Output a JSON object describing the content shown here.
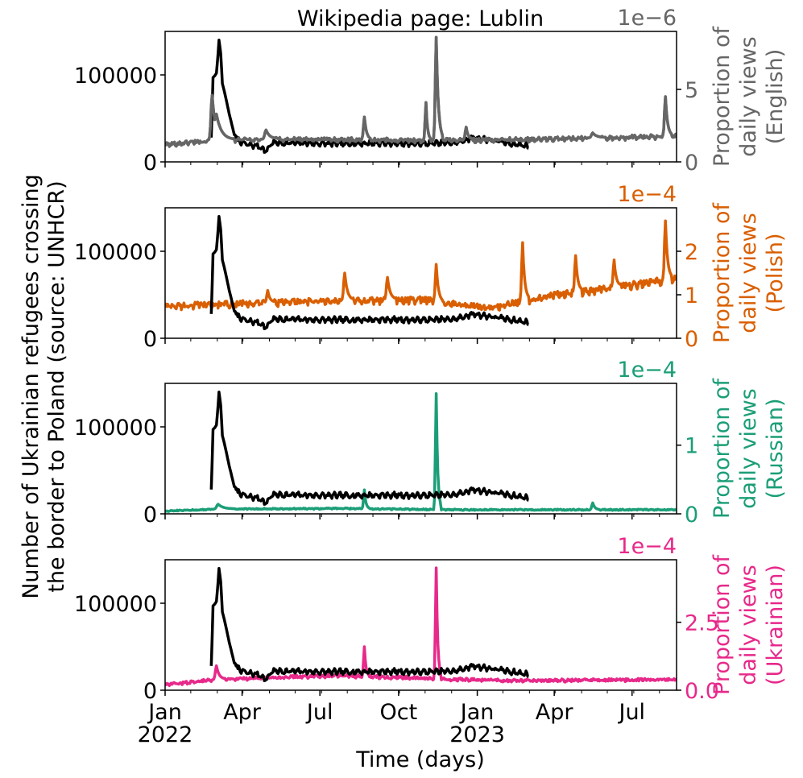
{
  "figure": {
    "title": "Wikipedia page: Lublin",
    "shared_ylabel_line1": "Number of Ukrainian refugees crossing",
    "shared_ylabel_line2": "the border to Poland (source: UNHCR)",
    "xlabel": "Time (days)",
    "x_ticks": [
      {
        "day": 0,
        "label": "Jan",
        "year": "2022"
      },
      {
        "day": 90,
        "label": "Apr",
        "year": ""
      },
      {
        "day": 181,
        "label": "Jul",
        "year": ""
      },
      {
        "day": 273,
        "label": "Oct",
        "year": ""
      },
      {
        "day": 365,
        "label": "Jan",
        "year": "2023"
      },
      {
        "day": 455,
        "label": "Apr",
        "year": ""
      },
      {
        "day": 546,
        "label": "Jul",
        "year": ""
      }
    ],
    "x_range_days": [
      0,
      598
    ],
    "left_ylim": [
      0,
      150000
    ],
    "left_ticks": [
      {
        "value": 0,
        "label": "0"
      },
      {
        "value": 100000,
        "label": "100000"
      }
    ]
  },
  "chart_data": [
    {
      "type": "line",
      "language": "English",
      "color": "#666666",
      "right_ylabel_line1": "Proportion of",
      "right_ylabel_line2": "daily views",
      "right_ylabel_line3": "(English)",
      "right_multiplier": "1e−6",
      "right_ylim": [
        0,
        9.0
      ],
      "right_ticks": [
        {
          "value": 0,
          "label": "0"
        },
        {
          "value": 5,
          "label": "5"
        }
      ],
      "views_baseline": 1.6,
      "views_noise": 0.12,
      "views_peaks": [
        [
          55,
          4.6,
          5
        ],
        [
          60,
          3.3,
          8
        ],
        [
          88,
          1.5,
          4
        ],
        [
          118,
          2.2,
          6
        ],
        [
          233,
          3.1,
          3
        ],
        [
          305,
          4.1,
          2
        ],
        [
          317,
          8.6,
          3
        ],
        [
          352,
          2.4,
          3
        ],
        [
          500,
          2.0,
          6
        ],
        [
          585,
          4.5,
          3
        ]
      ],
      "views_trend": [
        [
          0,
          1.2
        ],
        [
          50,
          1.5
        ],
        [
          150,
          1.6
        ],
        [
          300,
          1.5
        ],
        [
          450,
          1.6
        ],
        [
          598,
          1.8
        ]
      ]
    },
    {
      "type": "line",
      "language": "Polish",
      "color": "#d95f02",
      "right_ylabel_line1": "Proportion of",
      "right_ylabel_line2": "daily views",
      "right_ylabel_line3": "(Polish)",
      "right_multiplier": "1e−4",
      "right_ylim": [
        0,
        3.0
      ],
      "right_ticks": [
        {
          "value": 0,
          "label": "0"
        },
        {
          "value": 1,
          "label": "1"
        },
        {
          "value": 2,
          "label": "2"
        }
      ],
      "views_baseline": 0.8,
      "views_noise": 0.06,
      "views_peaks": [
        [
          120,
          1.1,
          3
        ],
        [
          210,
          1.5,
          4
        ],
        [
          260,
          1.4,
          4
        ],
        [
          317,
          1.7,
          3
        ],
        [
          418,
          2.2,
          3
        ],
        [
          480,
          1.9,
          3
        ],
        [
          525,
          1.8,
          3
        ],
        [
          585,
          2.7,
          3
        ]
      ],
      "views_trend": [
        [
          0,
          0.75
        ],
        [
          150,
          0.85
        ],
        [
          300,
          0.9
        ],
        [
          380,
          0.7
        ],
        [
          450,
          1.0
        ],
        [
          530,
          1.2
        ],
        [
          598,
          1.4
        ]
      ]
    },
    {
      "type": "line",
      "language": "Russian",
      "color": "#1b9e77",
      "right_ylabel_line1": "Proportion of",
      "right_ylabel_line2": "daily views",
      "right_ylabel_line3": "(Russian)",
      "right_multiplier": "1e−4",
      "right_ylim": [
        0,
        1.9
      ],
      "right_ticks": [
        {
          "value": 0,
          "label": "0"
        },
        {
          "value": 1,
          "label": "1"
        }
      ],
      "views_baseline": 0.05,
      "views_noise": 0.008,
      "views_peaks": [
        [
          62,
          0.14,
          8
        ],
        [
          233,
          0.35,
          2
        ],
        [
          317,
          1.75,
          2
        ],
        [
          500,
          0.16,
          3
        ]
      ],
      "views_trend": [
        [
          0,
          0.04
        ],
        [
          60,
          0.07
        ],
        [
          200,
          0.08
        ],
        [
          350,
          0.06
        ],
        [
          598,
          0.06
        ]
      ]
    },
    {
      "type": "line",
      "language": "Ukrainian",
      "color": "#e7298a",
      "right_ylabel_line1": "Proportion of",
      "right_ylabel_line2": "daily views",
      "right_ylabel_line3": "(Ukrainian)",
      "right_multiplier": "1e−4",
      "right_ylim": [
        0,
        4.8
      ],
      "right_ticks": [
        {
          "value": 0,
          "label": "0.0"
        },
        {
          "value": 2.5,
          "label": "2.5"
        }
      ],
      "views_baseline": 0.35,
      "views_noise": 0.05,
      "views_peaks": [
        [
          60,
          0.9,
          4
        ],
        [
          233,
          1.6,
          2
        ],
        [
          317,
          4.5,
          2
        ]
      ],
      "views_trend": [
        [
          0,
          0.2
        ],
        [
          60,
          0.4
        ],
        [
          200,
          0.55
        ],
        [
          300,
          0.45
        ],
        [
          400,
          0.35
        ],
        [
          598,
          0.4
        ]
      ]
    }
  ],
  "refugee_series": {
    "color": "#000000",
    "start_day": 54,
    "end_day": 425,
    "key_points": [
      [
        54,
        28000
      ],
      [
        55,
        60000
      ],
      [
        56,
        97000
      ],
      [
        58,
        99000
      ],
      [
        60,
        102000
      ],
      [
        62,
        125000
      ],
      [
        63,
        140000
      ],
      [
        65,
        125000
      ],
      [
        67,
        90000
      ],
      [
        70,
        78000
      ],
      [
        75,
        55000
      ],
      [
        80,
        35000
      ],
      [
        85,
        25000
      ],
      [
        95,
        20000
      ],
      [
        110,
        18000
      ],
      [
        118,
        12000
      ],
      [
        125,
        22000
      ],
      [
        200,
        21000
      ],
      [
        260,
        21500
      ],
      [
        300,
        21000
      ],
      [
        340,
        22000
      ],
      [
        360,
        28000
      ],
      [
        400,
        22000
      ],
      [
        425,
        18000
      ]
    ],
    "noise": 2000
  }
}
